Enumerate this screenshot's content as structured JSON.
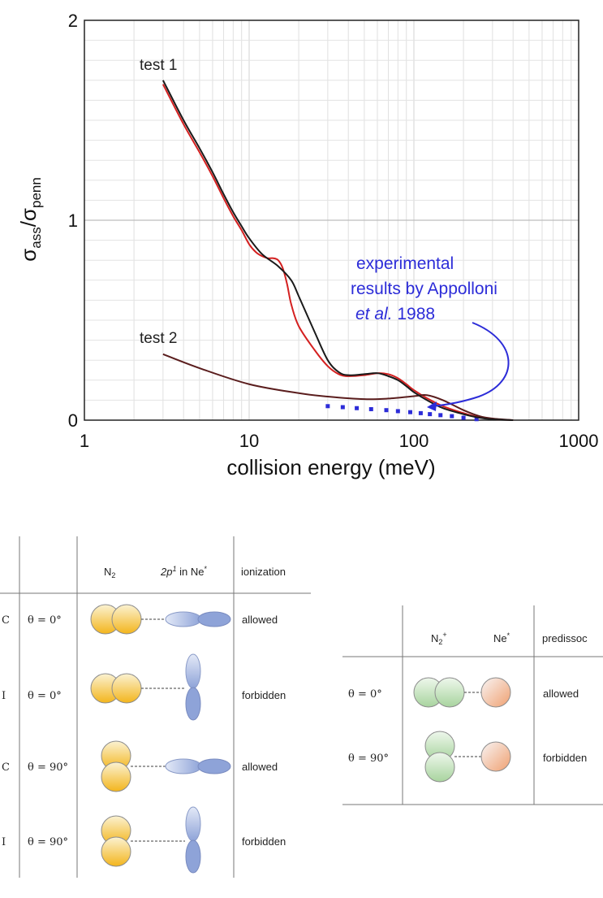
{
  "chart_data": {
    "type": "line",
    "xscale": "log",
    "xlim": [
      1,
      1000
    ],
    "ylim": [
      0,
      2
    ],
    "xticks": [
      "1",
      "10",
      "100",
      "1000"
    ],
    "yticks": [
      "0",
      "1",
      "2"
    ],
    "xlabel": "collision energy (meV)",
    "ylabel": {
      "base1": "σ",
      "sub1": "ass",
      "sep": "/",
      "base2": "σ",
      "sub2": "penn"
    },
    "grid": true,
    "series": [
      {
        "name": "test 1",
        "color": "#1a1a1a",
        "x": [
          3,
          4,
          5,
          6,
          7,
          8,
          9,
          10,
          12,
          15,
          18,
          20,
          25,
          30,
          35,
          40,
          50,
          60,
          70,
          80,
          90,
          100,
          120,
          150,
          200,
          250,
          300,
          400
        ],
        "y": [
          1.7,
          1.5,
          1.36,
          1.24,
          1.13,
          1.04,
          0.97,
          0.91,
          0.83,
          0.77,
          0.7,
          0.62,
          0.44,
          0.3,
          0.24,
          0.225,
          0.23,
          0.235,
          0.22,
          0.2,
          0.17,
          0.14,
          0.1,
          0.06,
          0.03,
          0.012,
          0.004,
          0.0
        ]
      },
      {
        "name": "test 1",
        "color": "#d42020",
        "x": [
          3,
          4,
          5,
          6,
          7,
          8,
          9,
          10,
          11,
          12,
          13,
          14,
          15,
          16,
          17,
          18,
          20,
          25,
          30,
          35,
          40,
          50,
          60,
          70,
          80,
          90,
          100,
          120,
          150,
          200,
          250,
          300,
          400
        ],
        "y": [
          1.68,
          1.48,
          1.34,
          1.22,
          1.11,
          1.02,
          0.95,
          0.88,
          0.84,
          0.82,
          0.81,
          0.81,
          0.8,
          0.76,
          0.68,
          0.58,
          0.47,
          0.35,
          0.27,
          0.23,
          0.22,
          0.225,
          0.235,
          0.23,
          0.21,
          0.18,
          0.15,
          0.11,
          0.07,
          0.035,
          0.014,
          0.005,
          0.0
        ]
      },
      {
        "name": "test 2",
        "color": "#5a1d1d",
        "x": [
          3,
          5,
          10,
          20,
          30,
          50,
          70,
          100,
          120,
          150,
          200,
          250,
          300,
          400
        ],
        "y": [
          0.33,
          0.26,
          0.18,
          0.135,
          0.118,
          0.105,
          0.108,
          0.12,
          0.125,
          0.1,
          0.05,
          0.02,
          0.008,
          0.0
        ]
      },
      {
        "name": "experimental results by Appolloni et al. 1988",
        "color": "#2c2cd8",
        "x": [
          30,
          37,
          45,
          55,
          68,
          80,
          95,
          110,
          125,
          145,
          170,
          200,
          240
        ],
        "y": [
          0.07,
          0.065,
          0.06,
          0.055,
          0.05,
          0.045,
          0.04,
          0.035,
          0.03,
          0.025,
          0.02,
          0.012,
          0.005
        ]
      }
    ],
    "annotations": {
      "test1": "test 1",
      "test2": "test 2",
      "exp_line1": "experimental",
      "exp_line2": "results by Appolloni",
      "exp_line3_italic": "et al.",
      "exp_line3_rest": " 1988"
    }
  },
  "table_left": {
    "col_molecule": "N",
    "col_molecule_sub": "2",
    "col_orbital": "2p",
    "col_orbital_sup": "1",
    "col_orbital_rest": " in Ne",
    "col_orbital_sup2": "*",
    "col_result": "ionization",
    "rows": [
      {
        "mark": "C",
        "angle": "θ = 0°",
        "result": "allowed"
      },
      {
        "mark": "I",
        "angle": "θ = 0°",
        "result": "forbidden"
      },
      {
        "mark": "C",
        "angle": "θ = 90°",
        "result": "allowed"
      },
      {
        "mark": "I",
        "angle": "θ = 90°",
        "result": "forbidden"
      }
    ]
  },
  "table_right": {
    "col_molecule": "N",
    "col_molecule_sub": "2",
    "col_molecule_sup": "+",
    "col_atom": "Ne",
    "col_atom_sup": "*",
    "col_result": "predissoc",
    "rows": [
      {
        "angle": "θ = 0°",
        "result": "allowed"
      },
      {
        "angle": "θ = 90°",
        "result": "forbidden"
      }
    ]
  }
}
